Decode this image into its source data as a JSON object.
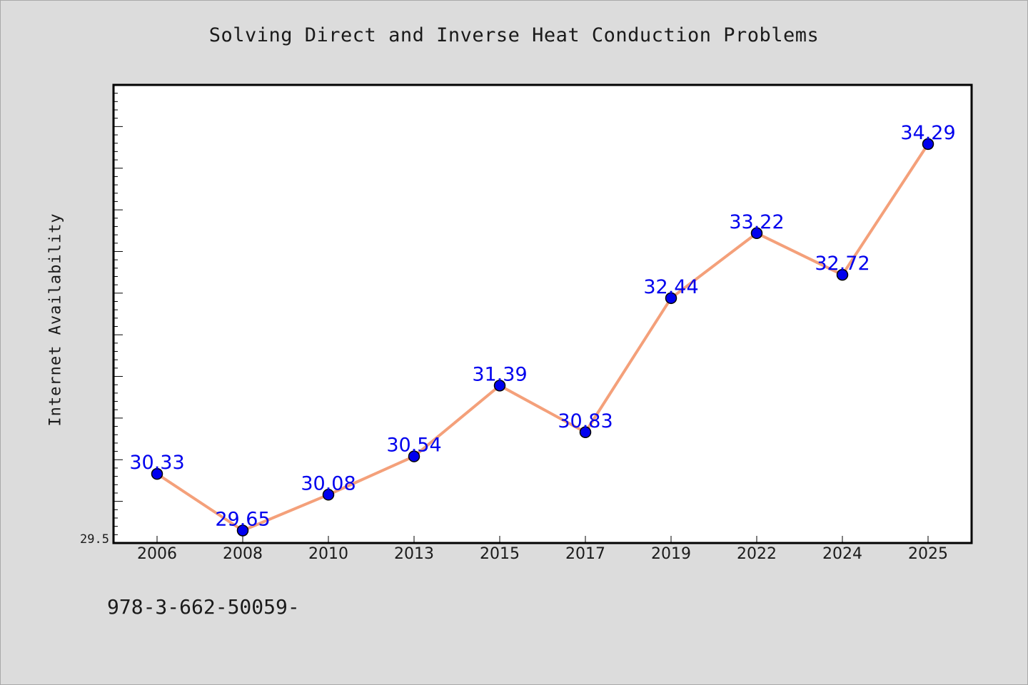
{
  "chart_data": {
    "type": "line",
    "title": "Solving Direct and Inverse Heat Conduction Problems",
    "xlabel": "",
    "ylabel": "Internet Availability",
    "categories": [
      "2006",
      "2008",
      "2010",
      "2013",
      "2015",
      "2017",
      "2019",
      "2022",
      "2024",
      "2025"
    ],
    "series": [
      {
        "values": [
          30.33,
          29.65,
          30.08,
          30.54,
          31.39,
          30.83,
          32.44,
          33.22,
          32.72,
          34.29
        ],
        "labels": [
          "30.33",
          "29.65",
          "30.08",
          "30.54",
          "31.39",
          "30.83",
          "32.44",
          "33.22",
          "32.72",
          "34.29"
        ]
      }
    ],
    "ylim": [
      29.5,
      35.0
    ],
    "y_tick_labels": [
      "29.5"
    ],
    "grid": false,
    "legend": "none",
    "colors": {
      "line": "#f4a07a",
      "marker": "#0000ee",
      "marker_edge": "#000000",
      "data_label": "#0000ee",
      "plot_background": "#ffffff",
      "page_background": "#dcdcdc"
    }
  },
  "footer": {
    "code": "978-3-662-50059-"
  }
}
